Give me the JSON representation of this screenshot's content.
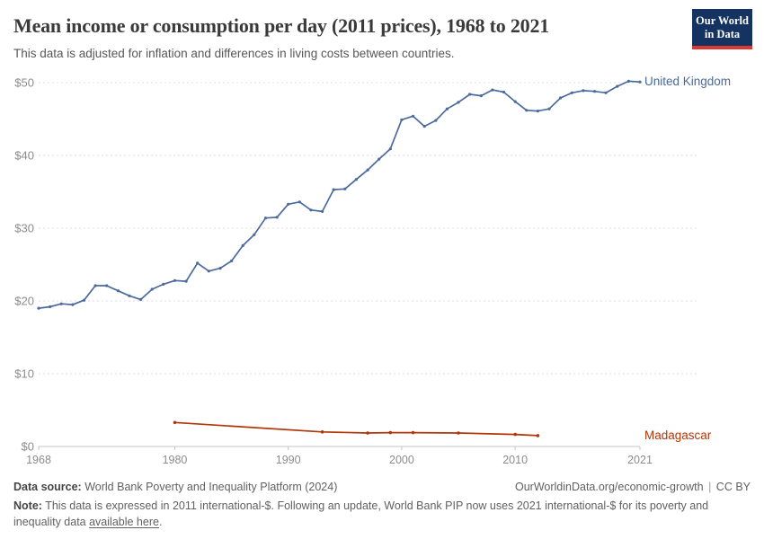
{
  "header": {
    "title": "Mean income or consumption per day (2011 prices), 1968 to 2021",
    "subtitle": "This data is adjusted for inflation and differences in living costs between countries.",
    "logo_line1": "Our World",
    "logo_line2": "in Data"
  },
  "colors": {
    "united_kingdom": "#4C6A9C",
    "madagascar": "#B13507",
    "gridline": "#dddddd",
    "axis": "#c4c4c4",
    "tick_label": "#8c8c8c",
    "logo_bg": "#143360",
    "logo_red": "#dc3a2f",
    "title_text": "#3a3a3a",
    "subtitle_text": "#575757",
    "footer_text": "#616161"
  },
  "chart_data": {
    "type": "line",
    "title": "Mean income or consumption per day (2011 prices), 1968 to 2021",
    "subtitle": "This data is adjusted for inflation and differences in living costs between countries.",
    "xlabel": "",
    "ylabel": "",
    "xlim": [
      1968,
      2021
    ],
    "ylim": [
      0,
      50
    ],
    "grid": "horizontal-dashed",
    "legend_position": "right-end-of-line-labels",
    "yticks": [
      {
        "value": 0,
        "label": "$0"
      },
      {
        "value": 10,
        "label": "$10"
      },
      {
        "value": 20,
        "label": "$20"
      },
      {
        "value": 30,
        "label": "$30"
      },
      {
        "value": 40,
        "label": "$40"
      },
      {
        "value": 50,
        "label": "$50"
      }
    ],
    "xticks": [
      {
        "value": 1968,
        "label": "1968"
      },
      {
        "value": 1980,
        "label": "1980"
      },
      {
        "value": 1990,
        "label": "1990"
      },
      {
        "value": 2000,
        "label": "2000"
      },
      {
        "value": 2010,
        "label": "2010"
      },
      {
        "value": 2021,
        "label": "2021"
      }
    ],
    "series": [
      {
        "name": "United Kingdom",
        "color": "#4C6A9C",
        "marker_radius": 1.6,
        "x": [
          1968,
          1969,
          1970,
          1971,
          1972,
          1973,
          1974,
          1975,
          1976,
          1977,
          1978,
          1979,
          1980,
          1981,
          1982,
          1983,
          1984,
          1985,
          1986,
          1987,
          1988,
          1989,
          1990,
          1991,
          1992,
          1993,
          1994,
          1995,
          1996,
          1997,
          1998,
          1999,
          2000,
          2001,
          2002,
          2003,
          2004,
          2005,
          2006,
          2007,
          2008,
          2009,
          2010,
          2011,
          2012,
          2013,
          2014,
          2015,
          2016,
          2017,
          2018,
          2019,
          2020,
          2021
        ],
        "values": [
          19.0,
          19.2,
          19.6,
          19.5,
          20.1,
          22.1,
          22.1,
          21.4,
          20.7,
          20.2,
          21.6,
          22.3,
          22.8,
          22.7,
          25.2,
          24.1,
          24.5,
          25.5,
          27.6,
          29.1,
          31.4,
          31.5,
          33.3,
          33.6,
          32.5,
          32.3,
          35.3,
          35.4,
          36.7,
          38.0,
          39.5,
          40.9,
          44.9,
          45.4,
          44.0,
          44.8,
          46.4,
          47.3,
          48.4,
          48.2,
          49.0,
          48.7,
          47.4,
          46.2,
          46.1,
          46.4,
          47.9,
          48.6,
          48.9,
          48.8,
          48.6,
          49.5,
          50.2,
          50.1
        ]
      },
      {
        "name": "Madagascar",
        "color": "#B13507",
        "marker_radius": 1.8,
        "x": [
          1980,
          1993,
          1997,
          1999,
          2001,
          2005,
          2010,
          2012
        ],
        "values": [
          3.3,
          2.0,
          1.85,
          1.9,
          1.9,
          1.85,
          1.65,
          1.5
        ]
      }
    ]
  },
  "footer": {
    "datasource_label": "Data source:",
    "datasource_text": "World Bank Poverty and Inequality Platform (2024)",
    "url_text": "OurWorldinData.org/economic-growth",
    "separator": "|",
    "license_text": "CC BY",
    "note_label": "Note:",
    "note_text": "This data is expressed in 2011 international-$. Following an update, World Bank PIP now uses 2021 international-$ for its poverty and inequality data",
    "note_link_text": "available here",
    "note_suffix": "."
  }
}
